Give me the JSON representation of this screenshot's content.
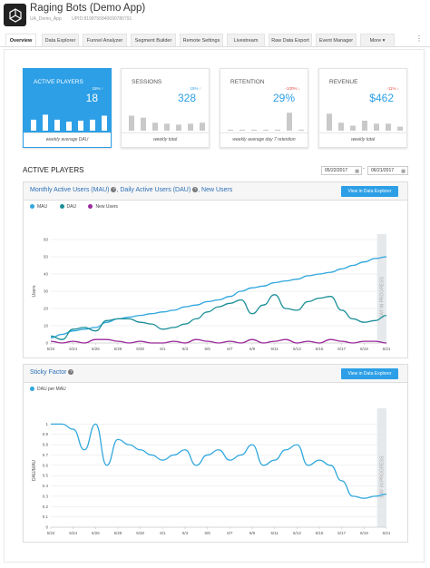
{
  "header": {
    "app_name": "Raging Bots (Demo App)",
    "org": "UA_Demo_App",
    "upid": "UPID:8198756840690780791"
  },
  "tabs": [
    {
      "label": "Overview",
      "active": true
    },
    {
      "label": "Data Explorer"
    },
    {
      "label": "Funnel Analyzer"
    },
    {
      "label": "Segment Builder"
    },
    {
      "label": "Remote Settings"
    },
    {
      "label": "Livestream"
    },
    {
      "label": "Raw Data Export"
    },
    {
      "label": "Event Manager"
    },
    {
      "label": "More ▾"
    }
  ],
  "cards": [
    {
      "title": "ACTIVE PLAYERS",
      "value": "18",
      "delta": "15% ↑",
      "footer": "weekly average DAU",
      "bars": [
        0.55,
        0.8,
        0.55,
        0.45,
        0.5,
        0.55,
        0.75
      ],
      "active": true
    },
    {
      "title": "SESSIONS",
      "value": "328",
      "delta": "15% ↑",
      "footer": "weekly total",
      "bars": [
        0.75,
        0.65,
        0.4,
        0.35,
        0.3,
        0.35,
        0.4
      ]
    },
    {
      "title": "RETENTION",
      "value": "29%",
      "delta": "-100% ↓",
      "footer": "weekly average day 7 retention",
      "bars": [
        0.05,
        0.05,
        0.05,
        0.05,
        0.05,
        0.9,
        0.05
      ],
      "negative": true
    },
    {
      "title": "REVENUE",
      "value": "$462",
      "delta": "-11% ↓",
      "footer": "weekly total",
      "bars": [
        0.85,
        0.4,
        0.25,
        0.5,
        0.35,
        0.35,
        0.2
      ],
      "negative": true
    }
  ],
  "section": {
    "title": "ACTIVE PLAYERS",
    "date_from": "05/22/2017",
    "date_to": "06/21/2017",
    "date_sep": "-"
  },
  "colors": {
    "accent": "#2c9fe6",
    "mau": "#30a7dd",
    "dau": "#1a8f98",
    "new_users": "#9b2a9b"
  },
  "chart1": {
    "title_parts": [
      "Monthly Active Users (MAU)",
      "Daily Active Users (DAU)",
      "New Users"
    ],
    "button": "View in Data Explorer",
    "legend": [
      "MAU",
      "DAU",
      "New Users"
    ],
    "in_progress_label": "DAY IN PROGRESS"
  },
  "chart2": {
    "title": "Sticky Factor",
    "button": "View in Data Explorer",
    "legend": [
      "DAU per MAU"
    ],
    "in_progress_label": "DAY IN PROGRESS"
  },
  "chart_data": [
    {
      "type": "line",
      "title": "Monthly Active Users (MAU), Daily Active Users (DAU), New Users",
      "ylabel": "Users",
      "xlabel": "",
      "x": [
        "5/22",
        "5/23",
        "5/24",
        "5/25",
        "5/26",
        "5/27",
        "5/28",
        "5/29",
        "5/30",
        "5/31",
        "6/1",
        "6/2",
        "6/3",
        "6/4",
        "6/5",
        "6/6",
        "6/7",
        "6/8",
        "6/9",
        "6/10",
        "6/11",
        "6/12",
        "6/13",
        "6/14",
        "6/15",
        "6/16",
        "6/17",
        "6/18",
        "6/19",
        "6/20",
        "6/21"
      ],
      "x_ticks": [
        "5/22",
        "5/24",
        "5/26",
        "5/28",
        "5/30",
        "6/1",
        "6/3",
        "6/5",
        "6/7",
        "6/9",
        "6/11",
        "6/13",
        "6/15",
        "6/17",
        "6/19",
        "6/21"
      ],
      "ylim": [
        0,
        60
      ],
      "y_ticks": [
        0,
        10,
        20,
        30,
        40,
        50,
        60
      ],
      "series": [
        {
          "name": "MAU",
          "values": [
            3,
            5,
            7,
            8,
            9,
            12,
            14,
            15,
            16,
            17,
            18,
            19,
            21,
            22,
            24,
            25,
            27,
            30,
            32,
            33,
            35,
            36,
            37,
            39,
            40,
            41,
            43,
            45,
            47,
            49,
            50
          ]
        },
        {
          "name": "DAU",
          "values": [
            4,
            2,
            8,
            9,
            7,
            13,
            14,
            14,
            12,
            11,
            8,
            9,
            11,
            14,
            18,
            21,
            23,
            25,
            17,
            22,
            28,
            20,
            19,
            24,
            26,
            27,
            19,
            14,
            12,
            13,
            16
          ]
        },
        {
          "name": "New Users",
          "values": [
            1,
            0,
            1,
            0,
            2,
            2,
            1,
            0,
            1,
            0,
            0,
            1,
            0,
            2,
            1,
            0,
            1,
            0,
            2,
            0,
            1,
            2,
            0,
            1,
            0,
            2,
            1,
            0,
            1,
            1,
            0
          ]
        }
      ],
      "shaded_region": [
        "6/20",
        "6/21"
      ]
    },
    {
      "type": "line",
      "title": "Sticky Factor",
      "ylabel": "DAU/MAU",
      "xlabel": "",
      "x": [
        "5/22",
        "5/23",
        "5/24",
        "5/25",
        "5/26",
        "5/27",
        "5/28",
        "5/29",
        "5/30",
        "5/31",
        "6/1",
        "6/2",
        "6/3",
        "6/4",
        "6/5",
        "6/6",
        "6/7",
        "6/8",
        "6/9",
        "6/10",
        "6/11",
        "6/12",
        "6/13",
        "6/14",
        "6/15",
        "6/16",
        "6/17",
        "6/18",
        "6/19",
        "6/20",
        "6/21"
      ],
      "x_ticks": [
        "5/22",
        "5/24",
        "5/26",
        "5/28",
        "5/30",
        "6/1",
        "6/3",
        "6/5",
        "6/7",
        "6/9",
        "6/11",
        "6/13",
        "6/15",
        "6/17",
        "6/19",
        "6/21"
      ],
      "ylim": [
        0,
        1.1
      ],
      "y_ticks": [
        0,
        0.1,
        0.2,
        0.3,
        0.4,
        0.5,
        0.6,
        0.7,
        0.8,
        0.9,
        1
      ],
      "series": [
        {
          "name": "DAU per MAU",
          "values": [
            1,
            1,
            0.95,
            0.75,
            1,
            0.6,
            0.85,
            0.8,
            0.75,
            0.7,
            0.65,
            0.7,
            0.75,
            0.6,
            0.7,
            0.75,
            0.65,
            0.7,
            0.8,
            0.6,
            0.65,
            0.75,
            0.8,
            0.6,
            0.65,
            0.6,
            0.45,
            0.3,
            0.28,
            0.3,
            0.32
          ]
        }
      ],
      "shaded_region": [
        "6/20",
        "6/21"
      ]
    }
  ]
}
